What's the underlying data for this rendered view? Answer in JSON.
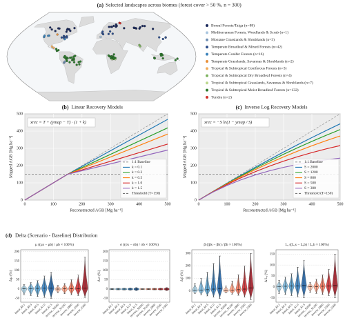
{
  "figure": {
    "panel_a_label": "(a)",
    "panel_a_title": "Selected landscapes across biomes (forest cover > 50 %, n = 300)",
    "panel_d_label": "(d)",
    "panel_d_title": "Delta (Scenario - Baseline) Distribution"
  },
  "map_legend": [
    {
      "name": "Boreal Forests/Taiga (n=88)",
      "color": "#1b2a5c"
    },
    {
      "name": "Mediterranean Forests, Woodlands & Scrub (n=1)",
      "color": "#a9c6df"
    },
    {
      "name": "Montane Grasslands & Shrublands (n=3)",
      "color": "#6f8fb3"
    },
    {
      "name": "Temperate Broadleaf & Mixed Forests (n=42)",
      "color": "#2e4f8c"
    },
    {
      "name": "Temperate Conifer Forests (n=16)",
      "color": "#3b82ba"
    },
    {
      "name": "Temperate Grasslands, Savannas & Shrublands (n=2)",
      "color": "#e8913a"
    },
    {
      "name": "Tropical & Subtropical Coniferous Forests (n=3)",
      "color": "#f2ad5c"
    },
    {
      "name": "Tropical & Subtropical Dry Broadleaf Forests (n=4)",
      "color": "#7db35f"
    },
    {
      "name": "Tropical & Subtropical Grasslands, Savannas & Shrublands (n=7)",
      "color": "#bcd88e"
    },
    {
      "name": "Tropical & Subtropical Moist Broadleaf Forests (n=132)",
      "color": "#2d7a2d"
    },
    {
      "name": "Tundra (n=2)",
      "color": "#d0312d"
    }
  ],
  "chart_data": [
    {
      "type": "line",
      "label": "(b)",
      "title": "Linear Recovery Models",
      "formula": "xrec = T + (ymap − T) · (1 + k)",
      "xlabel": "Reconstructed AGB [Mg ha⁻¹]",
      "ylabel": "Mapped AGB [Mg ha⁻¹]",
      "x": [
        0,
        150,
        500
      ],
      "baseline": {
        "name": "1:1 Baseline",
        "color": "#999999"
      },
      "series": [
        {
          "name": "k = 0.1",
          "color": "#1f77b4",
          "values": [
            0,
            150,
            468
          ]
        },
        {
          "name": "k = 0.3",
          "color": "#2ca02c",
          "values": [
            0,
            150,
            419
          ]
        },
        {
          "name": "k = 0.5",
          "color": "#ff7f0e",
          "values": [
            0,
            150,
            383
          ]
        },
        {
          "name": "k = 1.0",
          "color": "#d62728",
          "values": [
            0,
            150,
            325
          ]
        },
        {
          "name": "k = 1.5",
          "color": "#9467bd",
          "values": [
            0,
            150,
            290
          ]
        }
      ],
      "threshold": {
        "name": "Threshold (T=150)",
        "value": 150,
        "color": "#777777"
      },
      "xlim": [
        0,
        500
      ],
      "ylim": [
        0,
        500
      ],
      "xticks": [
        0,
        100,
        200,
        300,
        400,
        500
      ],
      "yticks": [
        0,
        100,
        200,
        300,
        400,
        500
      ],
      "grid": true
    },
    {
      "type": "line",
      "label": "(c)",
      "title": "Inverse Log Recovery Models",
      "formula": "xrec = −S ln(1 − ymap / S)",
      "xlabel": "Reconstructed AGB [Mg ha⁻¹]",
      "ylabel": "Mapped AGB [Mg ha⁻¹]",
      "x": [
        0,
        50,
        100,
        150,
        200,
        250,
        300,
        350,
        400,
        450,
        500
      ],
      "baseline": {
        "name": "1:1 Baseline",
        "color": "#999999"
      },
      "series": [
        {
          "name": "S = 2000",
          "color": "#1f77b4",
          "values": [
            0,
            49.4,
            97.5,
            144.5,
            190.3,
            235.0,
            278.6,
            321.1,
            362.5,
            402.9,
            442.4
          ]
        },
        {
          "name": "S = 1200",
          "color": "#2ca02c",
          "values": [
            0,
            49.0,
            96.0,
            141.0,
            184.2,
            225.7,
            265.5,
            303.6,
            340.2,
            375.3,
            408.9
          ]
        },
        {
          "name": "S = 800",
          "color": "#ff7f0e",
          "values": [
            0,
            48.5,
            94.0,
            136.8,
            177.0,
            214.7,
            250.2,
            283.5,
            314.8,
            344.2,
            371.8
          ]
        },
        {
          "name": "S = 500",
          "color": "#d62728",
          "values": [
            0,
            47.6,
            90.6,
            129.6,
            164.8,
            196.7,
            225.6,
            251.7,
            275.3,
            296.7,
            316.1
          ]
        },
        {
          "name": "S = 300",
          "color": "#9467bd",
          "values": [
            0,
            46.1,
            85.0,
            118.0,
            146.0,
            169.6,
            189.6,
            206.6,
            220.9,
            233.1,
            243.3
          ]
        }
      ],
      "threshold": {
        "name": "Threshold (T=150)",
        "value": 150,
        "color": "#777777"
      },
      "xlim": [
        0,
        500
      ],
      "ylim": [
        0,
        500
      ],
      "xticks": [
        0,
        100,
        200,
        300,
        400,
        500
      ],
      "yticks": [
        0,
        100,
        200,
        300,
        400,
        500
      ],
      "grid": true
    },
    {
      "type": "violin",
      "title": "μ ((μs − μb) / μb × 100%)",
      "ylabel": "Δ μ (%)",
      "categories": [
        "linear_k0.1",
        "linear_k0.3",
        "linear_k0.5",
        "linear_k1.0",
        "linear_k1.5",
        "inverse_S2000",
        "inverse_S1200",
        "inverse_S800",
        "inverse_S500",
        "inverse_S300"
      ],
      "colors": [
        "#9ecae1",
        "#6baed6",
        "#4292c6",
        "#2171b5",
        "#08519c",
        "#fcbba1",
        "#fc9272",
        "#ef6548",
        "#cb181d",
        "#99000d"
      ],
      "medians": [
        2,
        3,
        4,
        5,
        6,
        0,
        1,
        2,
        3,
        5
      ],
      "mins": [
        -30,
        -35,
        -40,
        -45,
        -50,
        -20,
        -25,
        -30,
        -35,
        -45
      ],
      "maxs": [
        25,
        35,
        45,
        70,
        90,
        20,
        30,
        50,
        75,
        170
      ],
      "ylim": [
        -70,
        210
      ],
      "yticks": [
        -50,
        0,
        50,
        100,
        150,
        200
      ],
      "grid": true
    },
    {
      "type": "violin",
      "title": "σ ((σs − σb) / σb × 100%)",
      "ylabel": "Δ σ (%)",
      "categories": [
        "linear_k0.1",
        "linear_k0.3",
        "linear_k0.5",
        "linear_k1.0",
        "linear_k1.5",
        "inverse_S2000",
        "inverse_S1200",
        "inverse_S800",
        "inverse_S500",
        "inverse_S300"
      ],
      "colors": [
        "#9ecae1",
        "#6baed6",
        "#4292c6",
        "#2171b5",
        "#08519c",
        "#fcbba1",
        "#fc9272",
        "#ef6548",
        "#cb181d",
        "#99000d"
      ],
      "medians": [
        0,
        0,
        0,
        0,
        0,
        0,
        0,
        0,
        0,
        0
      ],
      "mins": [
        -3,
        -4,
        -5,
        -6,
        -8,
        -2,
        -3,
        -4,
        -5,
        -8
      ],
      "maxs": [
        3,
        4,
        5,
        6,
        8,
        2,
        3,
        4,
        5,
        8
      ],
      "ylim": [
        -70,
        210
      ],
      "yticks": [
        -50,
        0,
        50,
        100,
        150,
        200
      ],
      "grid": true
    },
    {
      "type": "violin",
      "title": "β ((βs − βb) / βb × 100%)",
      "ylabel": "Δ β (%)",
      "categories": [
        "linear_k0.1",
        "linear_k0.3",
        "linear_k0.5",
        "linear_k1.0",
        "linear_k1.5",
        "inverse_S2000",
        "inverse_S1200",
        "inverse_S800",
        "inverse_S500",
        "inverse_S300"
      ],
      "colors": [
        "#9ecae1",
        "#6baed6",
        "#4292c6",
        "#2171b5",
        "#08519c",
        "#fcbba1",
        "#fc9272",
        "#ef6548",
        "#cb181d",
        "#99000d"
      ],
      "medians": [
        5,
        8,
        10,
        15,
        20,
        3,
        6,
        10,
        15,
        25
      ],
      "mins": [
        -20,
        -30,
        -40,
        -50,
        -60,
        -15,
        -25,
        -35,
        -50,
        -70
      ],
      "maxs": [
        60,
        100,
        150,
        220,
        280,
        40,
        80,
        130,
        200,
        300
      ],
      "ylim": [
        -90,
        330
      ],
      "yticks": [
        0,
        100,
        200,
        300
      ],
      "grid": true
    },
    {
      "type": "violin",
      "title": "Lₐ ((Lₐs − Lₐb) / Lₐb × 100%)",
      "ylabel": "Δ Lₐ (%)",
      "categories": [
        "linear_k0.1",
        "linear_k0.3",
        "linear_k0.5",
        "linear_k1.0",
        "linear_k1.5",
        "inverse_S2000",
        "inverse_S1200",
        "inverse_S800",
        "inverse_S500",
        "inverse_S300"
      ],
      "colors": [
        "#9ecae1",
        "#6baed6",
        "#4292c6",
        "#2171b5",
        "#08519c",
        "#fcbba1",
        "#fc9272",
        "#ef6548",
        "#cb181d",
        "#99000d"
      ],
      "medians": [
        2,
        3,
        4,
        5,
        6,
        1,
        2,
        3,
        4,
        6
      ],
      "mins": [
        -30,
        -35,
        -40,
        -45,
        -50,
        -25,
        -30,
        -35,
        -40,
        -50
      ],
      "maxs": [
        30,
        45,
        60,
        90,
        120,
        20,
        35,
        55,
        80,
        150
      ],
      "ylim": [
        -70,
        170
      ],
      "yticks": [
        -50,
        0,
        50,
        100,
        150
      ],
      "grid": true
    }
  ]
}
